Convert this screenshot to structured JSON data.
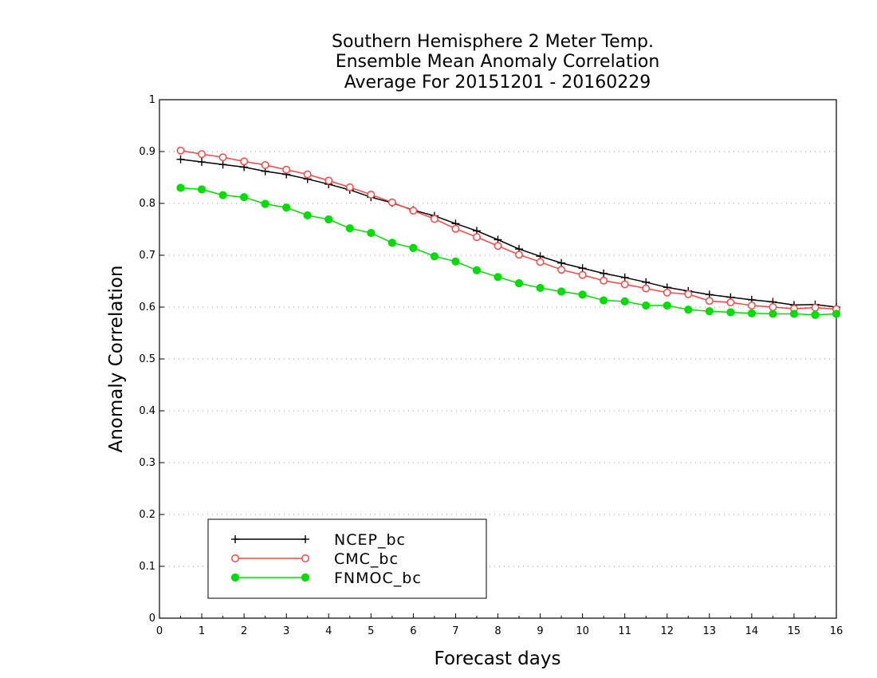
{
  "chart_data": {
    "type": "line",
    "title": [
      "Southern Hemisphere 2 Meter Temp.",
      "Ensemble Mean Anomaly Correlation",
      "Average For 20151201 - 20160229"
    ],
    "xlabel": "Forecast days",
    "ylabel": "Anomaly Correlation",
    "xlim": [
      0,
      16
    ],
    "ylim": [
      0,
      1
    ],
    "x_ticks": [
      "0",
      "1",
      "2",
      "3",
      "4",
      "5",
      "6",
      "7",
      "8",
      "9",
      "10",
      "11",
      "12",
      "13",
      "14",
      "15",
      "16"
    ],
    "y_ticks": [
      "0",
      "0.1",
      "0.2",
      "0.3",
      "0.4",
      "0.5",
      "0.6",
      "0.7",
      "0.8",
      "0.9",
      "1"
    ],
    "grid": "dotted horizontal",
    "legend_position": "bottom-left",
    "x": [
      0.5,
      1,
      1.5,
      2,
      2.5,
      3,
      3.5,
      4,
      4.5,
      5,
      5.5,
      6,
      6.5,
      7,
      7.5,
      8,
      8.5,
      9,
      9.5,
      10,
      10.5,
      11,
      11.5,
      12,
      12.5,
      13,
      13.5,
      14,
      14.5,
      15,
      15.5,
      16
    ],
    "series": [
      {
        "name": "NCEP_bc",
        "color": "#000000",
        "marker": "plus",
        "values": [
          0.885,
          0.88,
          0.875,
          0.87,
          0.862,
          0.856,
          0.847,
          0.837,
          0.826,
          0.812,
          0.801,
          0.787,
          0.776,
          0.761,
          0.747,
          0.73,
          0.712,
          0.698,
          0.685,
          0.675,
          0.665,
          0.657,
          0.648,
          0.638,
          0.631,
          0.624,
          0.619,
          0.614,
          0.61,
          0.604,
          0.605,
          0.6
        ]
      },
      {
        "name": "CMC_bc",
        "color": "#ff4444",
        "marker": "open-circle",
        "values": [
          0.902,
          0.895,
          0.889,
          0.881,
          0.874,
          0.865,
          0.856,
          0.844,
          0.831,
          0.817,
          0.802,
          0.786,
          0.77,
          0.751,
          0.735,
          0.718,
          0.701,
          0.687,
          0.672,
          0.662,
          0.651,
          0.644,
          0.636,
          0.628,
          0.625,
          0.612,
          0.609,
          0.603,
          0.6,
          0.597,
          0.599,
          0.596
        ]
      },
      {
        "name": "FNMOC_bc",
        "color": "#00dd00",
        "marker": "filled-circle",
        "values": [
          0.83,
          0.827,
          0.816,
          0.812,
          0.799,
          0.792,
          0.777,
          0.769,
          0.752,
          0.743,
          0.724,
          0.714,
          0.698,
          0.688,
          0.671,
          0.658,
          0.646,
          0.637,
          0.63,
          0.624,
          0.613,
          0.611,
          0.603,
          0.603,
          0.595,
          0.592,
          0.59,
          0.588,
          0.587,
          0.587,
          0.585,
          0.587
        ]
      }
    ]
  }
}
